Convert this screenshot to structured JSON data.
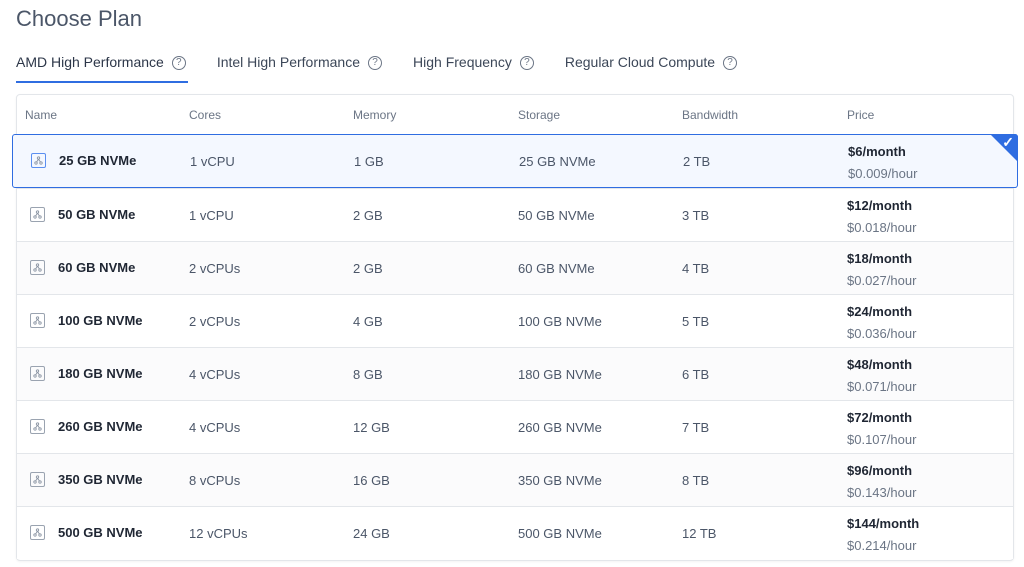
{
  "page_title": "Choose Plan",
  "tabs": [
    {
      "label": "AMD High Performance",
      "active": true
    },
    {
      "label": "Intel High Performance",
      "active": false
    },
    {
      "label": "High Frequency",
      "active": false
    },
    {
      "label": "Regular Cloud Compute",
      "active": false
    }
  ],
  "table": {
    "headers": [
      "Name",
      "Cores",
      "Memory",
      "Storage",
      "Bandwidth",
      "Price"
    ],
    "rows": [
      {
        "name": "25 GB NVMe",
        "cores": "1 vCPU",
        "memory": "1 GB",
        "storage": "25 GB NVMe",
        "bandwidth": "2 TB",
        "price": "$6/month",
        "hourly": "$0.009/hour",
        "selected": true
      },
      {
        "name": "50 GB NVMe",
        "cores": "1 vCPU",
        "memory": "2 GB",
        "storage": "50 GB NVMe",
        "bandwidth": "3 TB",
        "price": "$12/month",
        "hourly": "$0.018/hour",
        "selected": false
      },
      {
        "name": "60 GB NVMe",
        "cores": "2 vCPUs",
        "memory": "2 GB",
        "storage": "60 GB NVMe",
        "bandwidth": "4 TB",
        "price": "$18/month",
        "hourly": "$0.027/hour",
        "selected": false
      },
      {
        "name": "100 GB NVMe",
        "cores": "2 vCPUs",
        "memory": "4 GB",
        "storage": "100 GB NVMe",
        "bandwidth": "5 TB",
        "price": "$24/month",
        "hourly": "$0.036/hour",
        "selected": false
      },
      {
        "name": "180 GB NVMe",
        "cores": "4 vCPUs",
        "memory": "8 GB",
        "storage": "180 GB NVMe",
        "bandwidth": "6 TB",
        "price": "$48/month",
        "hourly": "$0.071/hour",
        "selected": false
      },
      {
        "name": "260 GB NVMe",
        "cores": "4 vCPUs",
        "memory": "12 GB",
        "storage": "260 GB NVMe",
        "bandwidth": "7 TB",
        "price": "$72/month",
        "hourly": "$0.107/hour",
        "selected": false
      },
      {
        "name": "350 GB NVMe",
        "cores": "8 vCPUs",
        "memory": "16 GB",
        "storage": "350 GB NVMe",
        "bandwidth": "8 TB",
        "price": "$96/month",
        "hourly": "$0.143/hour",
        "selected": false
      },
      {
        "name": "500 GB NVMe",
        "cores": "12 vCPUs",
        "memory": "24 GB",
        "storage": "500 GB NVMe",
        "bandwidth": "12 TB",
        "price": "$144/month",
        "hourly": "$0.214/hour",
        "selected": false
      }
    ]
  },
  "icons": {
    "tab_help": "question-circle-icon",
    "plan": "server-chip-icon",
    "selected": "checkmark-icon"
  },
  "colors": {
    "accent": "#2f6de1",
    "text": "#3c4758",
    "border": "#e3e6ea"
  }
}
